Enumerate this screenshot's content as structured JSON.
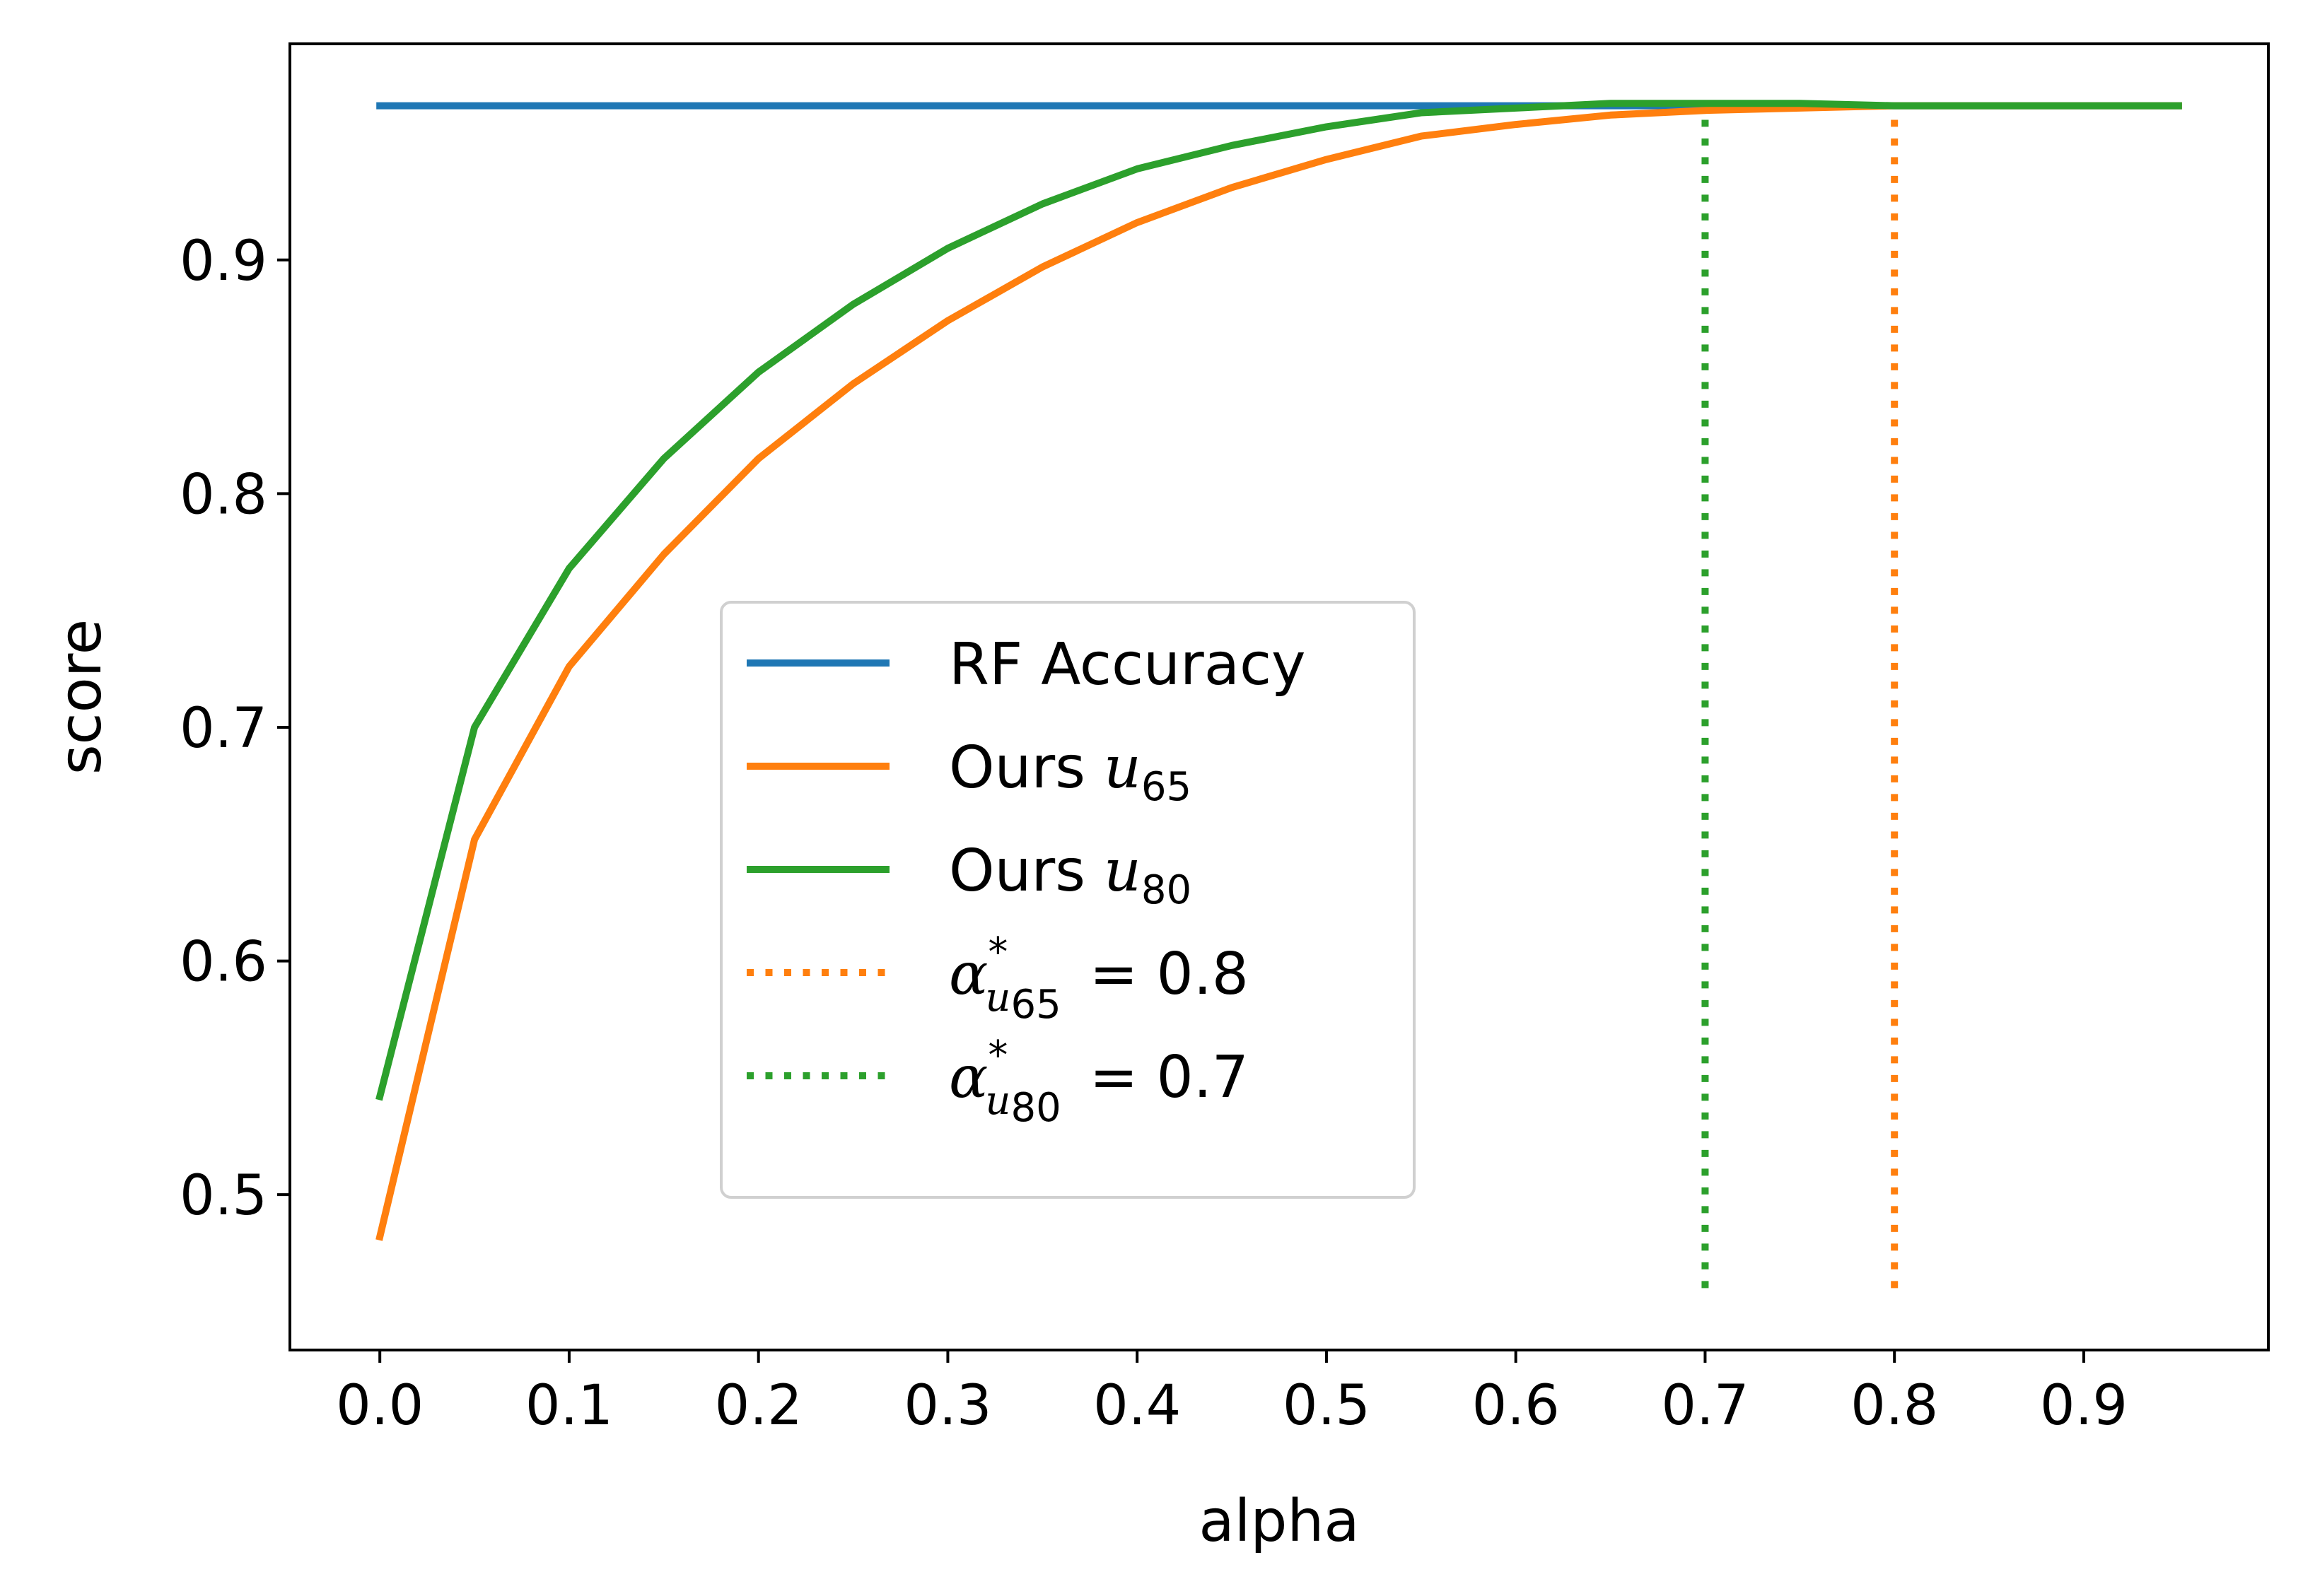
{
  "chart_data": {
    "type": "line",
    "xlabel": "alpha",
    "ylabel": "score",
    "xlim": [
      -0.0475,
      0.9975
    ],
    "ylim": [
      0.4335,
      0.9925
    ],
    "x_ticks": [
      {
        "value": 0.0,
        "label": "0.0"
      },
      {
        "value": 0.1,
        "label": "0.1"
      },
      {
        "value": 0.2,
        "label": "0.2"
      },
      {
        "value": 0.3,
        "label": "0.3"
      },
      {
        "value": 0.4,
        "label": "0.4"
      },
      {
        "value": 0.5,
        "label": "0.5"
      },
      {
        "value": 0.6,
        "label": "0.6"
      },
      {
        "value": 0.7,
        "label": "0.7"
      },
      {
        "value": 0.8,
        "label": "0.8"
      },
      {
        "value": 0.9,
        "label": "0.9"
      }
    ],
    "y_ticks": [
      {
        "value": 0.5,
        "label": "0.5"
      },
      {
        "value": 0.6,
        "label": "0.6"
      },
      {
        "value": 0.7,
        "label": "0.7"
      },
      {
        "value": 0.8,
        "label": "0.8"
      },
      {
        "value": 0.9,
        "label": "0.9"
      }
    ],
    "grid": false,
    "legend_position": "center",
    "x": [
      0.0,
      0.05,
      0.1,
      0.15,
      0.2,
      0.25,
      0.3,
      0.35,
      0.4,
      0.45,
      0.5,
      0.55,
      0.6,
      0.65,
      0.7,
      0.75,
      0.8,
      0.85,
      0.9,
      0.95
    ],
    "series": [
      {
        "name": "RF Accuracy",
        "name_main": "RF Accuracy",
        "name_sub": "",
        "color": "#1f77b4",
        "values": [
          0.966,
          0.966,
          0.966,
          0.966,
          0.966,
          0.966,
          0.966,
          0.966,
          0.966,
          0.966,
          0.966,
          0.966,
          0.966,
          0.966,
          0.966,
          0.966,
          0.966,
          0.966,
          0.966,
          0.966
        ]
      },
      {
        "name": "Ours u65",
        "name_main": "Ours",
        "name_var": "u",
        "name_sub": "65",
        "color": "#ff7f0e",
        "values": [
          0.482,
          0.652,
          0.726,
          0.774,
          0.815,
          0.847,
          0.874,
          0.897,
          0.916,
          0.931,
          0.943,
          0.953,
          0.958,
          0.962,
          0.964,
          0.965,
          0.966,
          0.966,
          0.966,
          0.966
        ]
      },
      {
        "name": "Ours u80",
        "name_main": "Ours",
        "name_var": "u",
        "name_sub": "80",
        "color": "#2ca02c",
        "values": [
          0.542,
          0.7,
          0.768,
          0.815,
          0.852,
          0.881,
          0.905,
          0.924,
          0.939,
          0.949,
          0.957,
          0.963,
          0.965,
          0.967,
          0.967,
          0.967,
          0.966,
          0.966,
          0.966,
          0.966
        ]
      }
    ],
    "vlines": [
      {
        "name": "alpha* u65 = 0.8",
        "label_var": "α",
        "label_sup": "*",
        "label_sub": "u65",
        "label_value": "= 0.8",
        "x": 0.8,
        "ymin": 0.46,
        "ymax": 0.96,
        "color": "#ff7f0e",
        "style": "dotted"
      },
      {
        "name": "alpha* u80 = 0.7",
        "label_var": "α",
        "label_sup": "*",
        "label_sub": "u80",
        "label_value": "= 0.7",
        "x": 0.7,
        "ymin": 0.46,
        "ymax": 0.96,
        "color": "#2ca02c",
        "style": "dotted"
      }
    ]
  }
}
